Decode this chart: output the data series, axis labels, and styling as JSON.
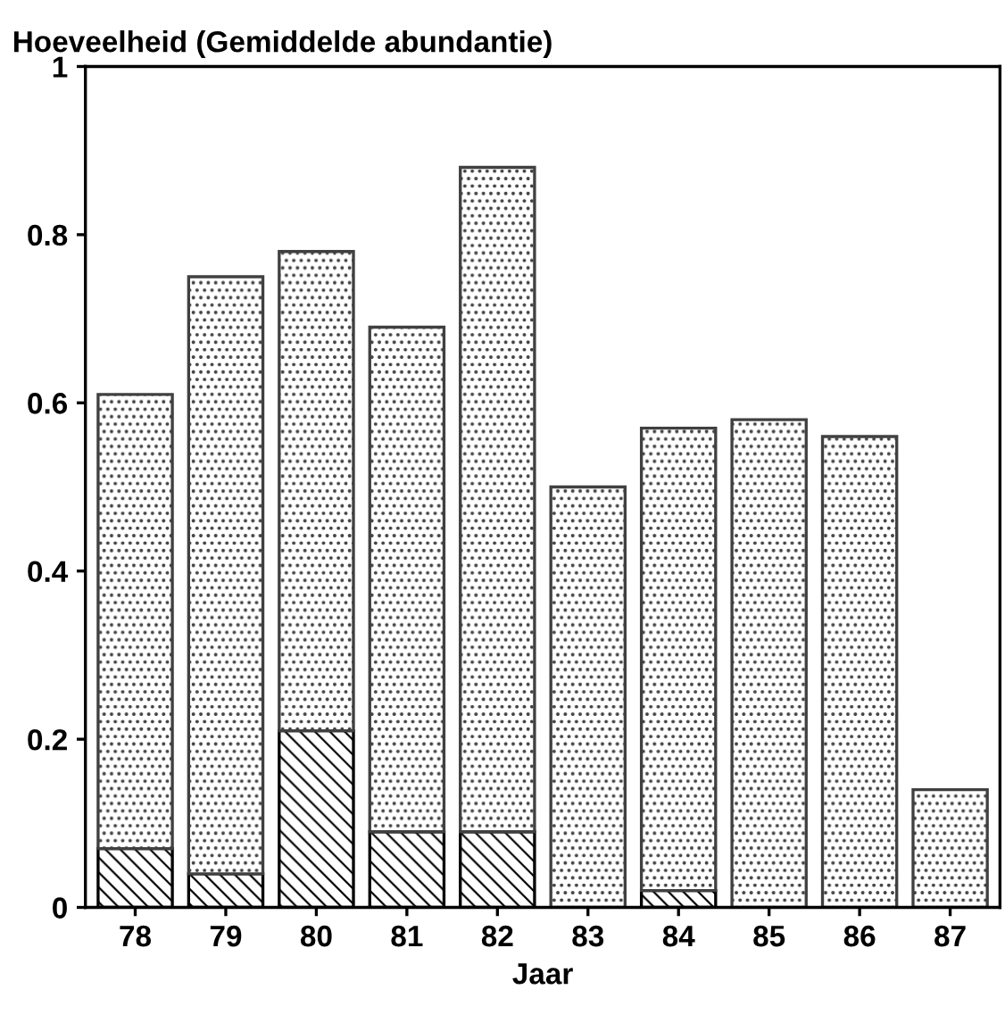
{
  "chart_data": {
    "type": "bar",
    "stacked": true,
    "ylabel": "Hoeveelheid (Gemiddelde abundantie)",
    "xlabel": "Jaar",
    "categories": [
      "78",
      "79",
      "80",
      "81",
      "82",
      "83",
      "84",
      "85",
      "86",
      "87"
    ],
    "series": [
      {
        "color": "#000000",
        "values": [
          0.07,
          0.04,
          0.21,
          0.09,
          0.09,
          0,
          0.02,
          0,
          0,
          0
        ]
      },
      {
        "color": "#404040",
        "values": [
          0.54,
          0.71,
          0.57,
          0.6,
          0.79,
          0.5,
          0.55,
          0.58,
          0.56,
          0.14
        ]
      }
    ],
    "ylim": [
      0,
      1
    ],
    "yticks": [
      0,
      0.2,
      0.4,
      0.6,
      0.8,
      1
    ],
    "grid": false,
    "legend": false
  }
}
